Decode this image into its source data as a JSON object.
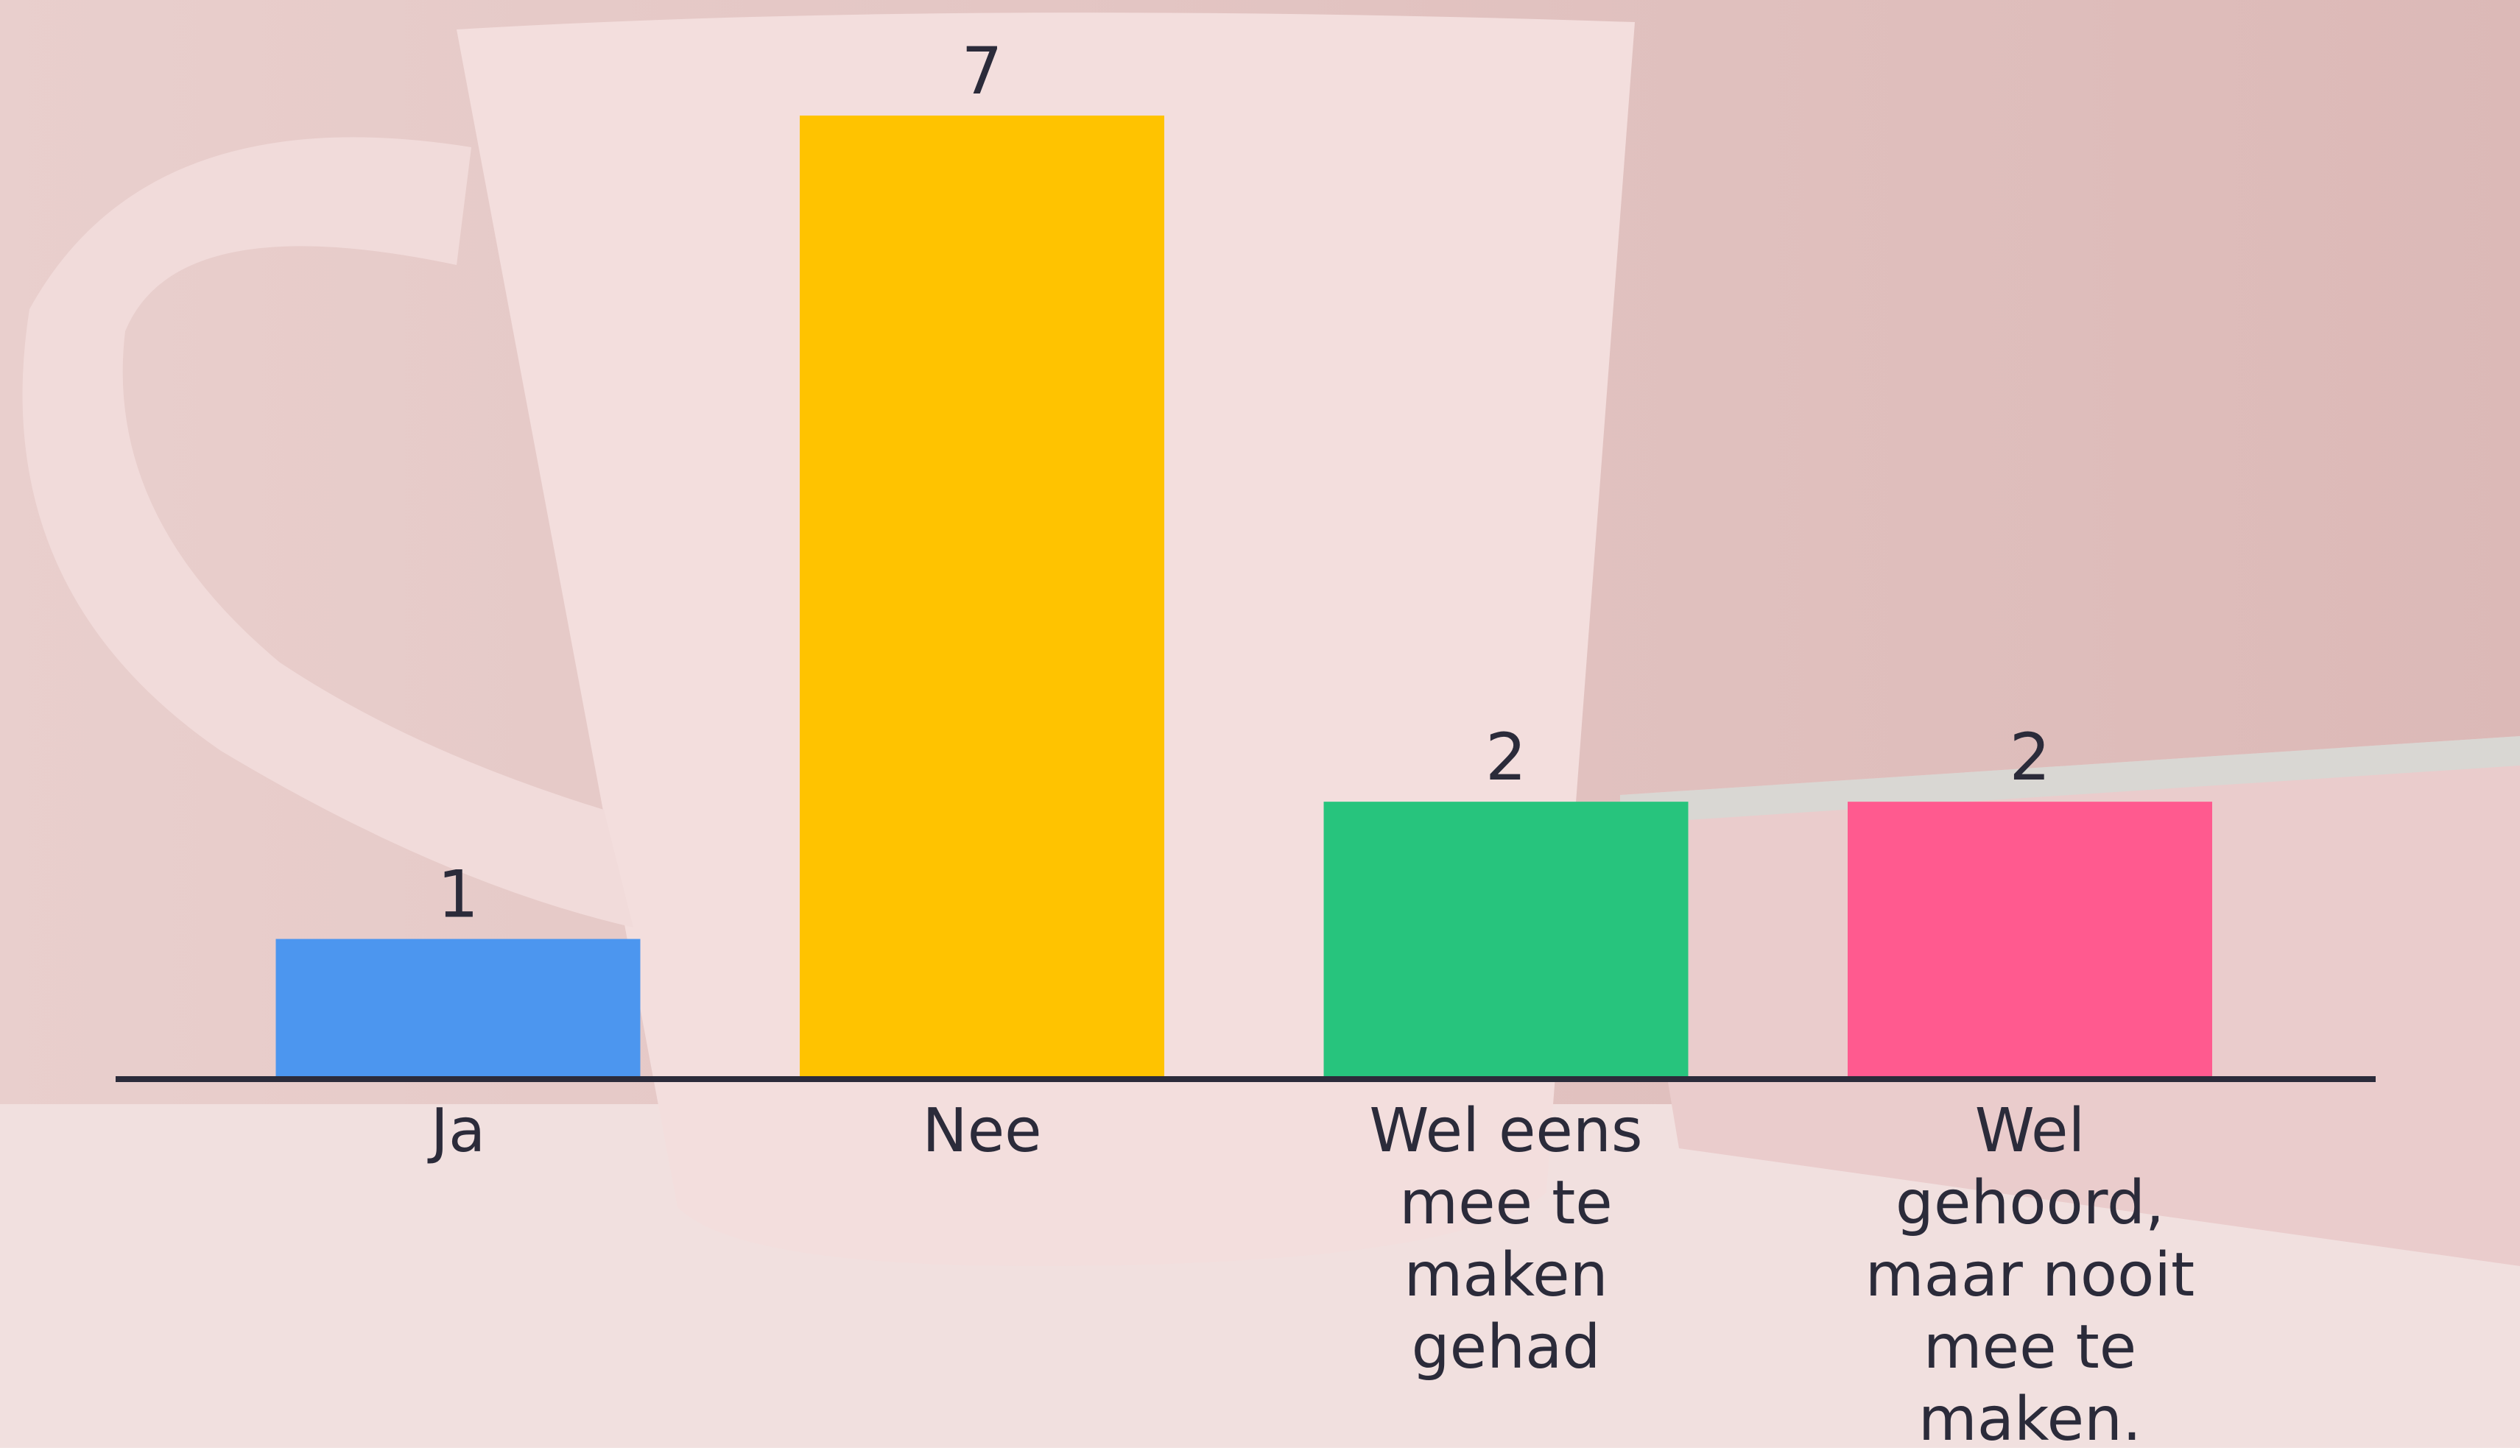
{
  "chart_data": {
    "type": "bar",
    "categories": [
      "Ja",
      "Nee",
      "Wel eens mee te maken gehad",
      "Wel gehoord, maar nooit mee te maken."
    ],
    "values": [
      1,
      7,
      2,
      2
    ],
    "colors": [
      "#4c96ef",
      "#ffc300",
      "#27c47d",
      "#ff5a8f"
    ]
  }
}
